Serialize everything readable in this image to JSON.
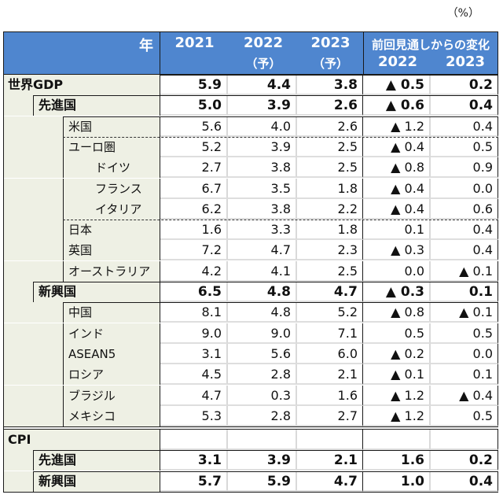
{
  "unit_label": "（%）",
  "header": {
    "year_label": "年",
    "columns": [
      {
        "line1": "2021",
        "line2": ""
      },
      {
        "line1": "2022",
        "line2": "（予）"
      },
      {
        "line1": "2023",
        "line2": "（予）"
      }
    ],
    "change_group": "前回見通しからの変化",
    "change_columns": [
      "2022",
      "2023"
    ]
  },
  "rows": [
    {
      "label": "世界GDP",
      "level": 0,
      "bold": true,
      "v2021": "5.9",
      "v2022": "4.4",
      "v2023": "3.8",
      "d2022": "▲ 0.5",
      "d2023": "0.2"
    },
    {
      "label": "先進国",
      "level": 1,
      "bold": true,
      "v2021": "5.0",
      "v2022": "3.9",
      "v2023": "2.6",
      "d2022": "▲ 0.6",
      "d2023": "0.4"
    },
    {
      "label": "米国",
      "level": 2,
      "bold": false,
      "v2021": "5.6",
      "v2022": "4.0",
      "v2023": "2.6",
      "d2022": "▲ 1.2",
      "d2023": "0.4"
    },
    {
      "label": "ユーロ圏",
      "level": 2,
      "bold": false,
      "v2021": "5.2",
      "v2022": "3.9",
      "v2023": "2.5",
      "d2022": "▲ 0.4",
      "d2023": "0.5"
    },
    {
      "label": "ドイツ",
      "level": 3,
      "bold": false,
      "v2021": "2.7",
      "v2022": "3.8",
      "v2023": "2.5",
      "d2022": "▲ 0.8",
      "d2023": "0.9"
    },
    {
      "label": "フランス",
      "level": 3,
      "bold": false,
      "v2021": "6.7",
      "v2022": "3.5",
      "v2023": "1.8",
      "d2022": "▲ 0.4",
      "d2023": "0.0"
    },
    {
      "label": "イタリア",
      "level": 3,
      "bold": false,
      "v2021": "6.2",
      "v2022": "3.8",
      "v2023": "2.2",
      "d2022": "▲ 0.4",
      "d2023": "0.6"
    },
    {
      "label": "日本",
      "level": 2,
      "bold": false,
      "v2021": "1.6",
      "v2022": "3.3",
      "v2023": "1.8",
      "d2022": "0.1",
      "d2023": "0.4"
    },
    {
      "label": "英国",
      "level": 2,
      "bold": false,
      "v2021": "7.2",
      "v2022": "4.7",
      "v2023": "2.3",
      "d2022": "▲ 0.3",
      "d2023": "0.4"
    },
    {
      "label": "オーストラリア",
      "level": 2,
      "bold": false,
      "v2021": "4.2",
      "v2022": "4.1",
      "v2023": "2.5",
      "d2022": "0.0",
      "d2023": "▲ 0.1"
    },
    {
      "label": "新興国",
      "level": 1,
      "bold": true,
      "v2021": "6.5",
      "v2022": "4.8",
      "v2023": "4.7",
      "d2022": "▲ 0.3",
      "d2023": "0.1"
    },
    {
      "label": "中国",
      "level": 2,
      "bold": false,
      "v2021": "8.1",
      "v2022": "4.8",
      "v2023": "5.2",
      "d2022": "▲ 0.8",
      "d2023": "▲ 0.1"
    },
    {
      "label": "インド",
      "level": 2,
      "bold": false,
      "v2021": "9.0",
      "v2022": "9.0",
      "v2023": "7.1",
      "d2022": "0.5",
      "d2023": "0.5"
    },
    {
      "label": "ASEAN5",
      "level": 2,
      "bold": false,
      "v2021": "3.1",
      "v2022": "5.6",
      "v2023": "6.0",
      "d2022": "▲ 0.2",
      "d2023": "0.0"
    },
    {
      "label": "ロシア",
      "level": 2,
      "bold": false,
      "v2021": "4.5",
      "v2022": "2.8",
      "v2023": "2.1",
      "d2022": "▲ 0.1",
      "d2023": "0.1"
    },
    {
      "label": "ブラジル",
      "level": 2,
      "bold": false,
      "v2021": "4.7",
      "v2022": "0.3",
      "v2023": "1.6",
      "d2022": "▲ 1.2",
      "d2023": "▲ 0.4"
    },
    {
      "label": "メキシコ",
      "level": 2,
      "bold": false,
      "v2021": "5.3",
      "v2022": "2.8",
      "v2023": "2.7",
      "d2022": "▲ 1.2",
      "d2023": "0.5"
    },
    {
      "label": "CPI",
      "level": 0,
      "bold": true,
      "v2021": "",
      "v2022": "",
      "v2023": "",
      "d2022": "",
      "d2023": ""
    },
    {
      "label": "先進国",
      "level": 1,
      "bold": true,
      "v2021": "3.1",
      "v2022": "3.9",
      "v2023": "2.1",
      "d2022": "1.6",
      "d2023": "0.2"
    },
    {
      "label": "新興国",
      "level": 1,
      "bold": true,
      "v2021": "5.7",
      "v2022": "5.9",
      "v2023": "4.7",
      "d2022": "1.0",
      "d2023": "0.4"
    }
  ]
}
